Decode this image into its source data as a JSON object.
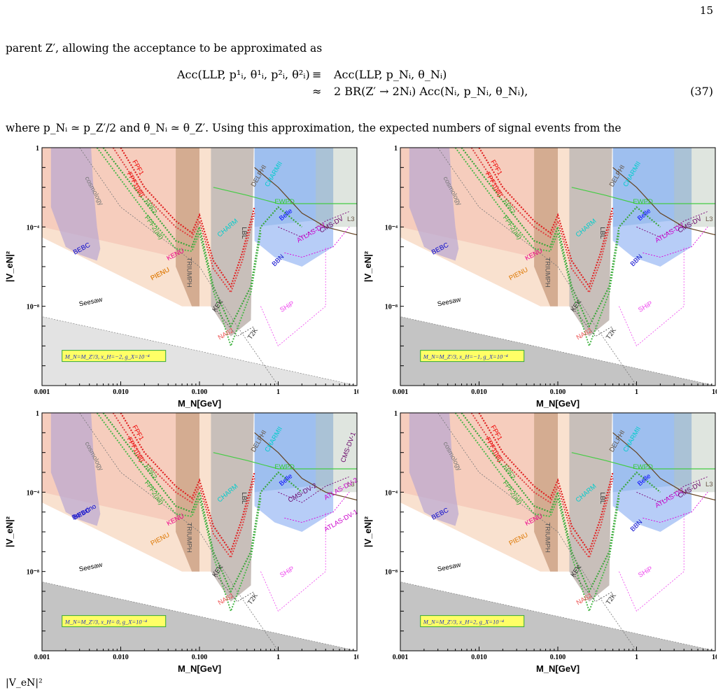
{
  "page_number": "15",
  "para1": "parent Z′, allowing the acceptance to be approximated as",
  "equation": {
    "line1_lhs": "Acc(LLP, p¹ᵢ, θ¹ᵢ, p²ᵢ, θ²ᵢ)",
    "line1_rel": "≡",
    "line1_rhs": "Acc(LLP, p_Nᵢ, θ_Nᵢ)",
    "line2_rel": "≈",
    "line2_rhs": "2 BR(Z′ → 2Nᵢ) Acc(Nᵢ, p_Nᵢ, θ_Nᵢ),",
    "number": "(37)"
  },
  "para2": "where p_Nᵢ ≃ p_Z′/2 and θ_Nᵢ ≃ θ_Z′.  Using this approximation, the expected numbers of signal events from the",
  "caption_fragment": "|V_eN|²",
  "axes": {
    "xlabel": "M_N[GeV]",
    "ylabel": "|V_eN|²",
    "xticks": [
      "0.001",
      "0.010",
      "0.100",
      "1",
      "10"
    ],
    "yticks": [
      "1",
      "10⁻⁴",
      "10⁻⁸"
    ]
  },
  "chart_data": [
    {
      "type": "area",
      "legend": "M_N=M_Z′/3, x_H=−2, g_X=10⁻⁴",
      "x_scale": "log",
      "y_scale": "log",
      "xlim": [
        0.001,
        10
      ],
      "ylim": [
        1e-12,
        1
      ],
      "labels": [
        "cosmology",
        "FPF1",
        "FPF1(all)",
        "FPF2",
        "FPF2(all)",
        "BEBC",
        "KENU",
        "PIENU",
        "TRIUMPH",
        "CHARM",
        "CHARMII",
        "EWPD",
        "DELPHI",
        "L3",
        "Belle",
        "ATLAS-DV",
        "CMS-DV",
        "BBN",
        "KEK",
        "NA62",
        "PIENU",
        "T2K",
        "SHiP",
        "Seesaw",
        "LBL"
      ]
    },
    {
      "type": "area",
      "legend": "M_N=M_Z′/3, x_H=−1, g_X=10⁻⁴",
      "x_scale": "log",
      "y_scale": "log",
      "xlim": [
        0.001,
        10
      ],
      "ylim": [
        1e-12,
        1
      ],
      "labels": [
        "cosmology",
        "FPF1",
        "FPF1(all)",
        "FPF2",
        "FPF2(all)",
        "BEBC",
        "KENU",
        "PIENU",
        "TRIUMPH",
        "CHARM",
        "CHARMII",
        "EWPD",
        "DELPHI",
        "L3",
        "Belle",
        "ATLAS-DV",
        "CMS-DV",
        "BBN",
        "KEK",
        "NA62",
        "T2K",
        "SHiP",
        "Seesaw",
        "LBL"
      ]
    },
    {
      "type": "area",
      "legend": "M_N=M_Z′/3, x_H= 0, g_X=10⁻⁴",
      "x_scale": "log",
      "y_scale": "log",
      "xlim": [
        0.001,
        10
      ],
      "ylim": [
        1e-12,
        1
      ],
      "labels": [
        "cosmology",
        "FPF1",
        "FPF1(all)",
        "FPF2",
        "FPF2(all)",
        "Borexino",
        "KENU",
        "PIENU",
        "TRIUMPH",
        "CHARM",
        "CHARMII",
        "EWPD",
        "DELPHI",
        "L3",
        "Belle",
        "CMS-DV-1",
        "CMS-DV-2",
        "ATLAS-DV-1",
        "ATLAS-DV-2",
        "BEBC",
        "KEK",
        "NA62",
        "T2K",
        "SHiP",
        "Seesaw",
        "LBL"
      ]
    },
    {
      "type": "area",
      "legend": "M_N=M_Z′/3, x_H=2, g_X=10⁻⁴",
      "x_scale": "log",
      "y_scale": "log",
      "xlim": [
        0.001,
        10
      ],
      "ylim": [
        1e-12,
        1
      ],
      "labels": [
        "cosmology",
        "FPF1",
        "FPF1(all)",
        "FPF2",
        "FPF2(all)",
        "BEBC",
        "KENU",
        "PIENU",
        "TRIUMPH",
        "CHARM",
        "CHARMII",
        "EWPD",
        "DELPHI",
        "L3",
        "Belle",
        "ATLAS-DV",
        "CMS-DV",
        "BBN",
        "KEK",
        "NA62",
        "T2K",
        "SHiP",
        "Seesaw",
        "LBL"
      ]
    }
  ]
}
